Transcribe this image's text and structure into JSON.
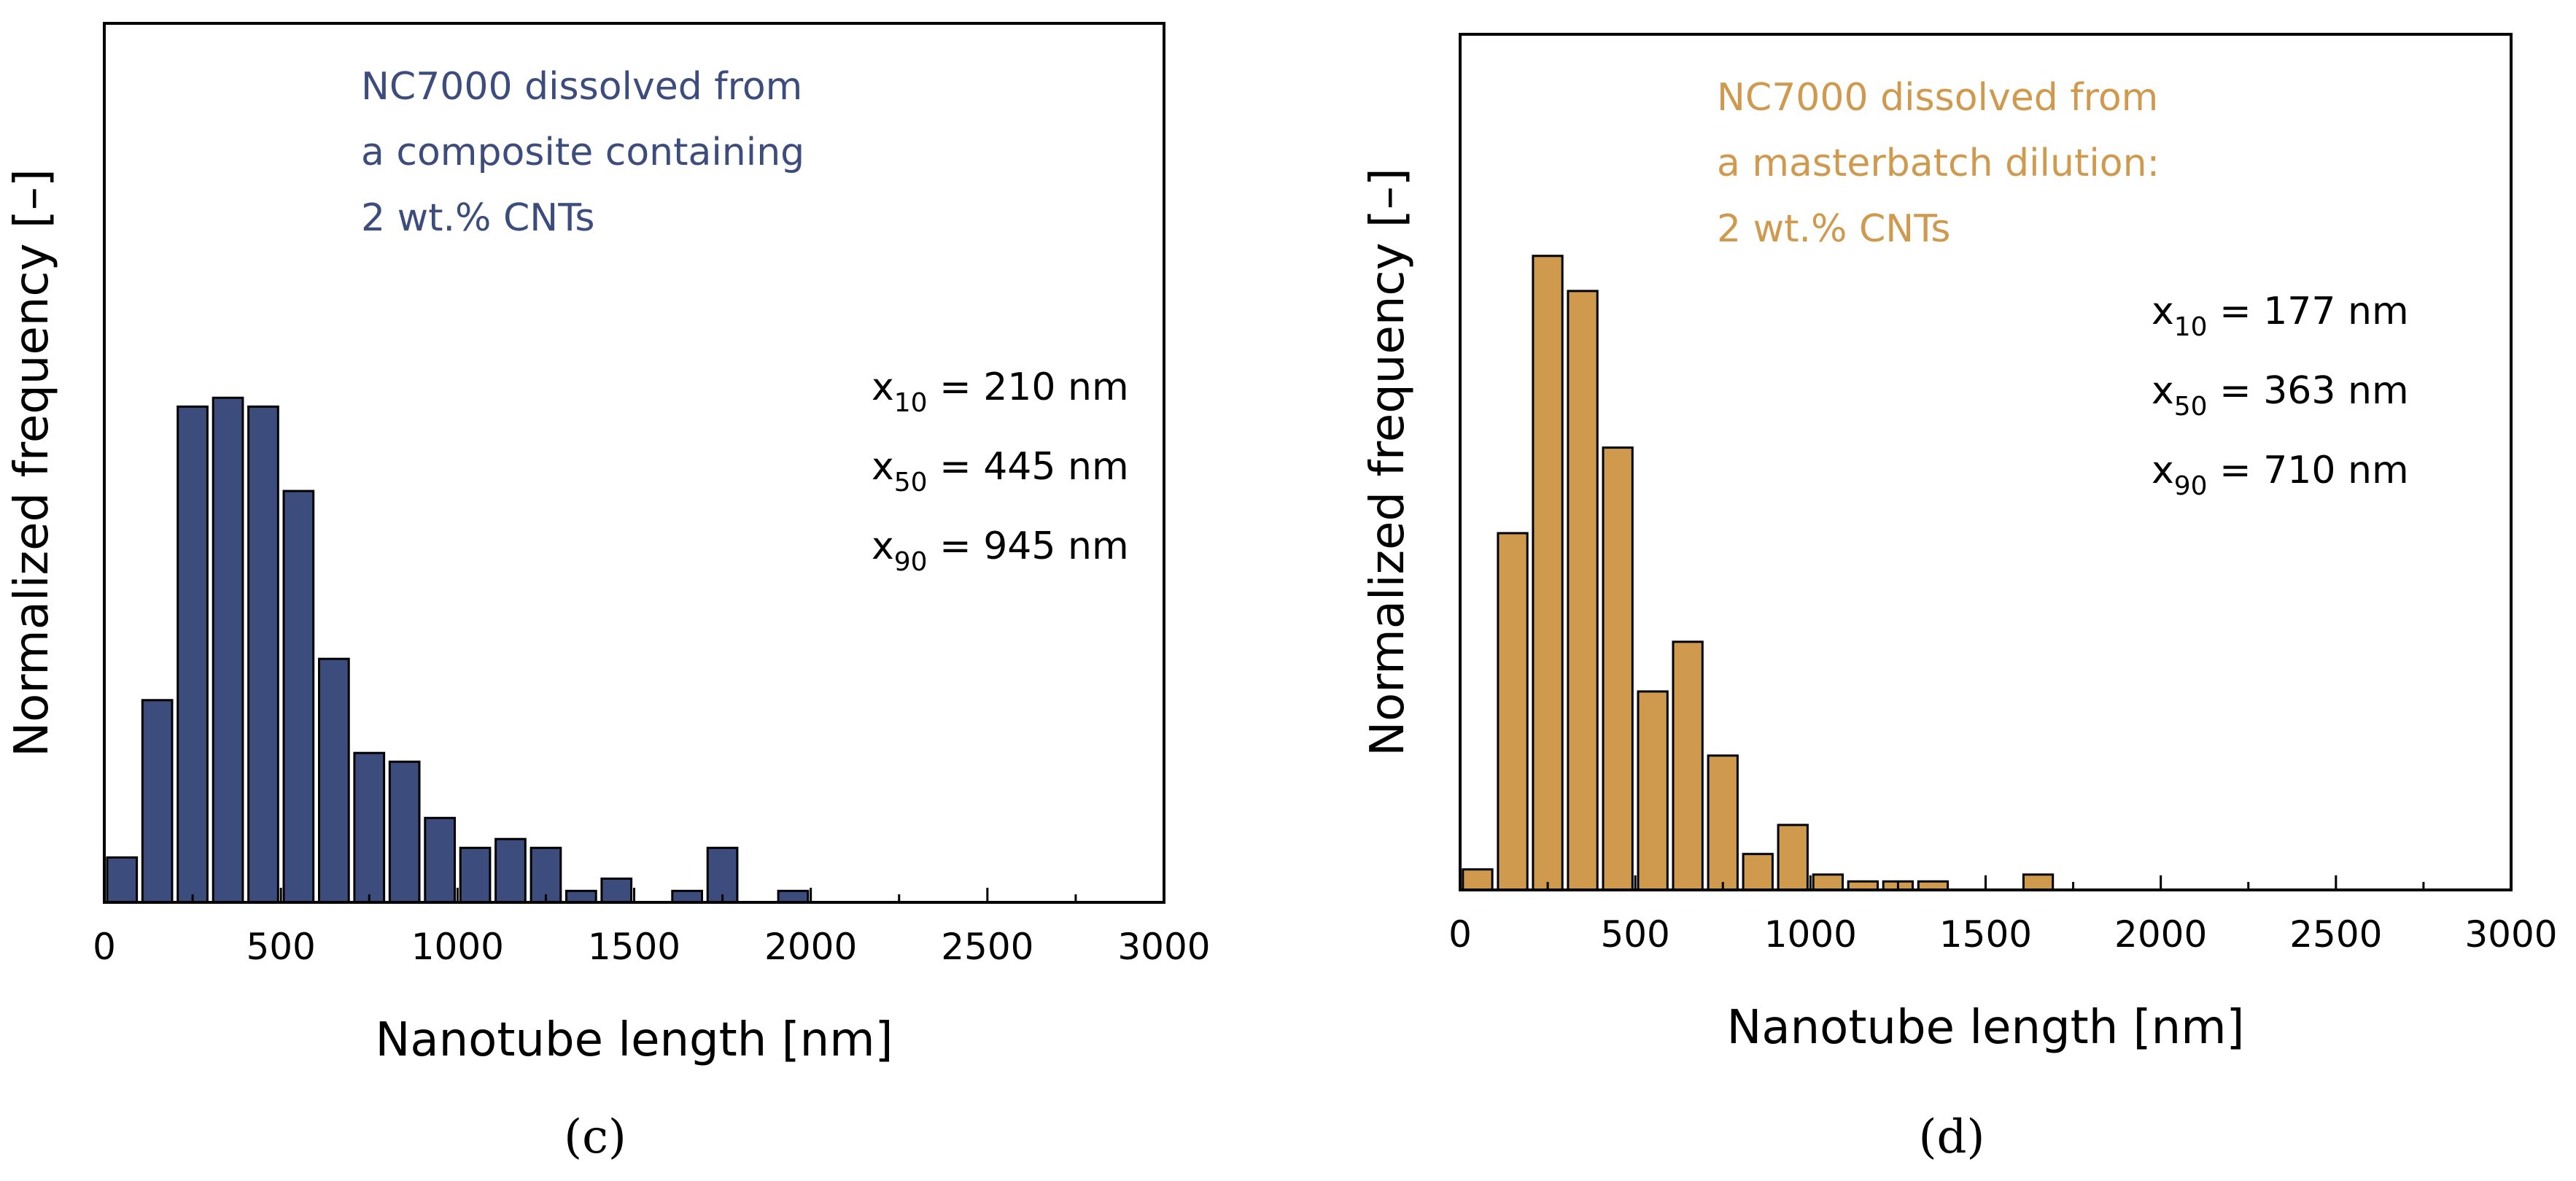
{
  "chart_data": [
    {
      "type": "bar",
      "panel_label": "(c)",
      "xlabel": "Nanotube length [nm]",
      "ylabel": "Normalized frequency [–]",
      "xlim": [
        0,
        3000
      ],
      "xticks": [
        "0",
        "500",
        "1000",
        "1500",
        "2000",
        "2500",
        "3000"
      ],
      "ylim": [
        0,
        1
      ],
      "y_ticks_labeled": false,
      "bar_color": "#3C4C7C",
      "bin_width": 100,
      "annotation": {
        "lines": [
          "NC7000 dissolved from",
          "a composite containing",
          "2 wt.% CNTs"
        ],
        "color": "#3C4C7C"
      },
      "stats": [
        {
          "symbol": "x",
          "sub": "10",
          "text": " = 210 nm"
        },
        {
          "symbol": "x",
          "sub": "50",
          "text": " = 445 nm"
        },
        {
          "symbol": "x",
          "sub": "90",
          "text": " = 945 nm"
        }
      ],
      "x": [
        50,
        150,
        250,
        350,
        450,
        550,
        650,
        750,
        850,
        950,
        1050,
        1150,
        1250,
        1350,
        1450,
        1550,
        1650,
        1750,
        1850,
        1950
      ],
      "values": [
        0.051,
        0.23,
        0.564,
        0.574,
        0.564,
        0.468,
        0.277,
        0.17,
        0.16,
        0.096,
        0.062,
        0.072,
        0.062,
        0.013,
        0.027,
        0.0,
        0.013,
        0.062,
        0.0,
        0.013
      ]
    },
    {
      "type": "bar",
      "panel_label": "(d)",
      "xlabel": "Nanotube length [nm]",
      "ylabel": "Normalized frequency [–]",
      "xlim": [
        0,
        3000
      ],
      "xticks": [
        "0",
        "500",
        "1000",
        "1500",
        "2000",
        "2500",
        "3000"
      ],
      "ylim": [
        0,
        1
      ],
      "y_ticks_labeled": false,
      "bar_color": "#D09A4E",
      "bin_width": 100,
      "annotation": {
        "lines": [
          "NC7000 dissolved from",
          "a masterbatch dilution:",
          "2 wt.% CNTs"
        ],
        "color": "#D09A4E"
      },
      "stats": [
        {
          "symbol": "x",
          "sub": "10",
          "text": " = 177 nm"
        },
        {
          "symbol": "x",
          "sub": "50",
          "text": " = 363 nm"
        },
        {
          "symbol": "x",
          "sub": "90",
          "text": " = 710 nm"
        }
      ],
      "x": [
        50,
        150,
        250,
        350,
        450,
        550,
        650,
        750,
        850,
        950,
        1050,
        1150,
        1250,
        1350,
        1450,
        1550,
        1650
      ],
      "values": [
        0.024,
        0.417,
        0.741,
        0.7,
        0.517,
        0.232,
        0.29,
        0.157,
        0.042,
        0.076,
        0.018,
        0.01,
        0.01,
        0.01,
        0.0,
        0.0,
        0.018
      ]
    }
  ]
}
